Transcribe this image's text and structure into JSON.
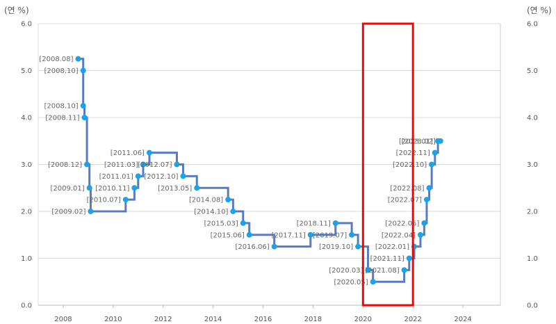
{
  "chart_data": {
    "type": "line",
    "step": true,
    "title": "",
    "y_unit_left": "(연 %)",
    "y_unit_right": "(연 %)",
    "xlabel": "",
    "ylabel": "",
    "xlim": [
      2007,
      2025.5
    ],
    "ylim": [
      0,
      6
    ],
    "x_ticks": [
      2008,
      2010,
      2012,
      2014,
      2016,
      2018,
      2020,
      2022,
      2024
    ],
    "y_ticks_left": [
      "0.0",
      "1.0",
      "2.0",
      "3.0",
      "4.0",
      "5.0",
      "6.0"
    ],
    "y_ticks_right": [
      "0.0",
      "1.0",
      "2.0",
      "3.0",
      "4.0",
      "5.0",
      "6.0"
    ],
    "grid": "horizontal",
    "line_color": "#5b7bc0",
    "marker_color": "#1aa3e8",
    "highlight_color": "#ff0000",
    "highlight_x_range": [
      2020,
      2022
    ],
    "series": [
      {
        "points": [
          {
            "x": 2008.6,
            "y": 5.25,
            "label": "[2008.08]"
          },
          {
            "x": 2008.8,
            "y": 5.0,
            "label": "[2008.10]"
          },
          {
            "x": 2008.8,
            "y": 4.25,
            "label": "[2008.10]"
          },
          {
            "x": 2008.85,
            "y": 4.0,
            "label": "[2008.11]"
          },
          {
            "x": 2008.95,
            "y": 3.0,
            "label": "[2008.12]"
          },
          {
            "x": 2009.05,
            "y": 2.5,
            "label": "[2009.01]"
          },
          {
            "x": 2009.1,
            "y": 2.0,
            "label": "[2009.02]"
          },
          {
            "x": 2010.5,
            "y": 2.25,
            "label": "[2010.07]"
          },
          {
            "x": 2010.85,
            "y": 2.5,
            "label": "[2010.11]"
          },
          {
            "x": 2011.0,
            "y": 2.75,
            "label": "[2011.01]"
          },
          {
            "x": 2011.2,
            "y": 3.0,
            "label": "[2011.03]"
          },
          {
            "x": 2011.45,
            "y": 3.25,
            "label": "[2011.06]"
          },
          {
            "x": 2012.55,
            "y": 3.0,
            "label": "[2012.07]"
          },
          {
            "x": 2012.8,
            "y": 2.75,
            "label": "[2012.10]"
          },
          {
            "x": 2013.35,
            "y": 2.5,
            "label": "[2013.05]"
          },
          {
            "x": 2014.6,
            "y": 2.25,
            "label": "[2014.08]"
          },
          {
            "x": 2014.8,
            "y": 2.0,
            "label": "[2014.10]"
          },
          {
            "x": 2015.2,
            "y": 1.75,
            "label": "[2015.03]"
          },
          {
            "x": 2015.45,
            "y": 1.5,
            "label": "[2015.06]"
          },
          {
            "x": 2016.45,
            "y": 1.25,
            "label": "[2016.06]"
          },
          {
            "x": 2017.9,
            "y": 1.5,
            "label": "[2017.11]"
          },
          {
            "x": 2018.9,
            "y": 1.75,
            "label": "[2018.11]"
          },
          {
            "x": 2019.55,
            "y": 1.5,
            "label": "[2019.07]"
          },
          {
            "x": 2019.8,
            "y": 1.25,
            "label": "[2019.10]"
          },
          {
            "x": 2020.2,
            "y": 0.75,
            "label": "[2020.03]"
          },
          {
            "x": 2020.4,
            "y": 0.5,
            "label": "[2020.05]"
          },
          {
            "x": 2021.65,
            "y": 0.75,
            "label": "[2021.08]"
          },
          {
            "x": 2021.85,
            "y": 1.0,
            "label": "[2021.11]"
          },
          {
            "x": 2022.05,
            "y": 1.25,
            "label": "[2022.01]"
          },
          {
            "x": 2022.3,
            "y": 1.5,
            "label": "[2022.04]"
          },
          {
            "x": 2022.45,
            "y": 1.75,
            "label": "[2022.05]"
          },
          {
            "x": 2022.55,
            "y": 2.25,
            "label": "[2022.07]"
          },
          {
            "x": 2022.65,
            "y": 2.5,
            "label": "[2022.08]"
          },
          {
            "x": 2022.75,
            "y": 3.0,
            "label": "[2022.10]"
          },
          {
            "x": 2022.88,
            "y": 3.25,
            "label": "[2022.11]"
          },
          {
            "x": 2023.0,
            "y": 3.5,
            "label": "[2023.01]"
          },
          {
            "x": 2023.1,
            "y": 3.5,
            "label": "[2023.02]"
          }
        ]
      }
    ]
  }
}
